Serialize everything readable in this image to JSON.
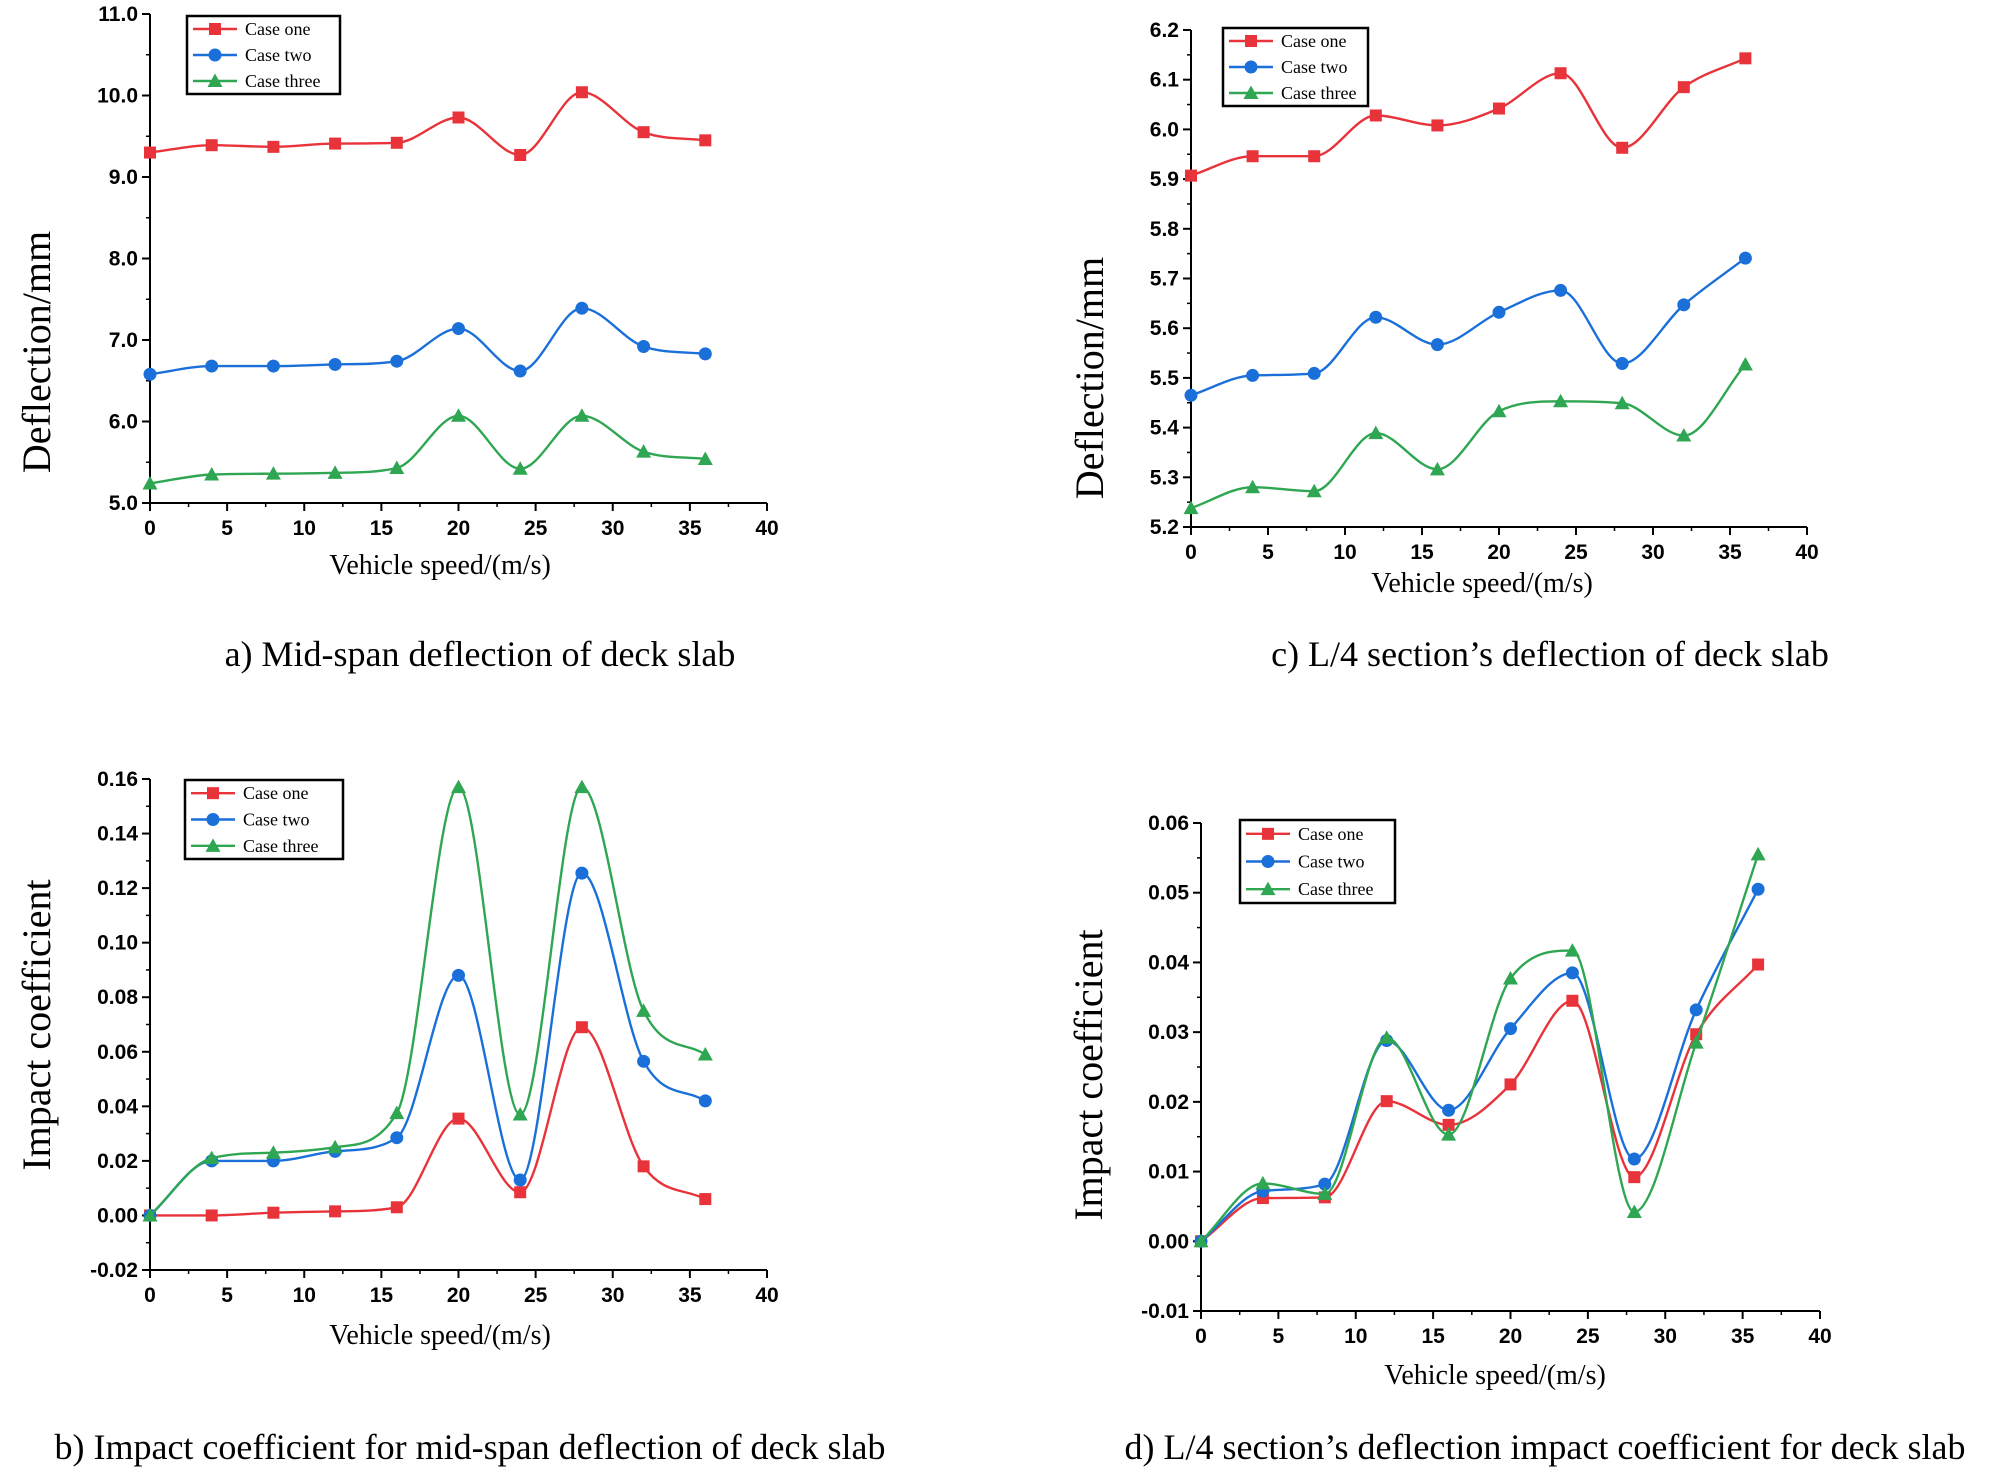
{
  "colors": {
    "case_one": "#e8333a",
    "case_two": "#1a6fd9",
    "case_three": "#2fa652"
  },
  "chart_data": [
    {
      "id": "a",
      "type": "line",
      "caption": "a) Mid-span deflection of deck slab",
      "ylabel": "Deflection/mm",
      "xlabel": "Vehicle speed/(m/s)",
      "xlim": [
        0,
        40
      ],
      "ylim": [
        5.0,
        11.0
      ],
      "xticks": [
        0,
        5,
        10,
        15,
        20,
        25,
        30,
        35,
        40
      ],
      "yticks": [
        5.0,
        6.0,
        7.0,
        8.0,
        9.0,
        10.0,
        11.0
      ],
      "xtick_labels": [
        "0",
        "5",
        "10",
        "15",
        "20",
        "25",
        "30",
        "35",
        "40"
      ],
      "ytick_labels": [
        "5.0",
        "6.0",
        "7.0",
        "8.0",
        "9.0",
        "10.0",
        "11.0"
      ],
      "x": [
        0,
        4,
        8,
        12,
        16,
        20,
        24,
        28,
        32,
        36
      ],
      "series": [
        {
          "name": "Case one",
          "marker": "square",
          "values": [
            9.3,
            9.39,
            9.37,
            9.41,
            9.42,
            9.73,
            9.27,
            10.04,
            9.55,
            9.45
          ]
        },
        {
          "name": "Case two",
          "marker": "circle",
          "values": [
            6.58,
            6.68,
            6.68,
            6.7,
            6.74,
            7.14,
            6.62,
            7.39,
            6.92,
            6.83
          ]
        },
        {
          "name": "Case three",
          "marker": "triangle",
          "values": [
            5.24,
            5.35,
            5.36,
            5.37,
            5.43,
            6.07,
            5.42,
            6.07,
            5.63,
            5.54
          ]
        }
      ]
    },
    {
      "id": "c",
      "type": "line",
      "caption": "c) L/4 section’s deflection of deck slab",
      "ylabel": "Deflection/mm",
      "xlabel": "Vehicle speed/(m/s)",
      "xlim": [
        0,
        40
      ],
      "ylim": [
        5.2,
        6.2
      ],
      "xticks": [
        0,
        5,
        10,
        15,
        20,
        25,
        30,
        35,
        40
      ],
      "yticks": [
        5.2,
        5.3,
        5.4,
        5.5,
        5.6,
        5.7,
        5.8,
        5.9,
        6.0,
        6.1,
        6.2
      ],
      "xtick_labels": [
        "0",
        "5",
        "10",
        "15",
        "20",
        "25",
        "30",
        "35",
        "40"
      ],
      "ytick_labels": [
        "5.2",
        "5.3",
        "5.4",
        "5.5",
        "5.6",
        "5.7",
        "5.8",
        "5.9",
        "6.0",
        "6.1",
        "6.2"
      ],
      "x": [
        0,
        4,
        8,
        12,
        16,
        20,
        24,
        28,
        32,
        36
      ],
      "series": [
        {
          "name": "Case one",
          "marker": "square",
          "values": [
            5.907,
            5.946,
            5.946,
            6.028,
            6.008,
            6.042,
            6.113,
            5.963,
            6.085,
            6.143
          ]
        },
        {
          "name": "Case two",
          "marker": "circle",
          "values": [
            5.465,
            5.505,
            5.509,
            5.622,
            5.567,
            5.632,
            5.676,
            5.529,
            5.647,
            5.741
          ]
        },
        {
          "name": "Case three",
          "marker": "triangle",
          "values": [
            5.238,
            5.28,
            5.272,
            5.389,
            5.316,
            5.433,
            5.453,
            5.449,
            5.384,
            5.527
          ]
        }
      ]
    },
    {
      "id": "b",
      "type": "line",
      "caption": "b) Impact coefficient for mid-span deflection of deck slab",
      "ylabel": "Impact coefficient",
      "xlabel": "Vehicle speed/(m/s)",
      "xlim": [
        0,
        40
      ],
      "ylim": [
        -0.02,
        0.16
      ],
      "xticks": [
        0,
        5,
        10,
        15,
        20,
        25,
        30,
        35,
        40
      ],
      "yticks": [
        -0.02,
        0.0,
        0.02,
        0.04,
        0.06,
        0.08,
        0.1,
        0.12,
        0.14,
        0.16
      ],
      "xtick_labels": [
        "0",
        "5",
        "10",
        "15",
        "20",
        "25",
        "30",
        "35",
        "40"
      ],
      "ytick_labels": [
        "-0.02",
        "0.00",
        "0.02",
        "0.04",
        "0.06",
        "0.08",
        "0.10",
        "0.12",
        "0.14",
        "0.16"
      ],
      "x": [
        0,
        4,
        8,
        12,
        16,
        20,
        24,
        28,
        32,
        36
      ],
      "series": [
        {
          "name": "Case one",
          "marker": "square",
          "values": [
            0.0,
            0.0,
            0.001,
            0.0015,
            0.003,
            0.0355,
            0.0085,
            0.069,
            0.018,
            0.006
          ]
        },
        {
          "name": "Case two",
          "marker": "circle",
          "values": [
            0.0,
            0.02,
            0.02,
            0.0235,
            0.0285,
            0.088,
            0.013,
            0.1255,
            0.0565,
            0.042
          ]
        },
        {
          "name": "Case three",
          "marker": "triangle",
          "values": [
            0.0,
            0.021,
            0.023,
            0.025,
            0.0375,
            0.157,
            0.037,
            0.157,
            0.075,
            0.059
          ]
        }
      ]
    },
    {
      "id": "d",
      "type": "line",
      "caption": "d) L/4 section’s deflection impact coefficient for deck slab",
      "ylabel": "Impact coefficient",
      "xlabel": "Vehicle speed/(m/s)",
      "xlim": [
        0,
        40
      ],
      "ylim": [
        -0.01,
        0.06
      ],
      "xticks": [
        0,
        5,
        10,
        15,
        20,
        25,
        30,
        35,
        40
      ],
      "yticks": [
        -0.01,
        0.0,
        0.01,
        0.02,
        0.03,
        0.04,
        0.05,
        0.06
      ],
      "xtick_labels": [
        "0",
        "5",
        "10",
        "15",
        "20",
        "25",
        "30",
        "35",
        "40"
      ],
      "ytick_labels": [
        "-0.01",
        "0.00",
        "0.01",
        "0.02",
        "0.03",
        "0.04",
        "0.05",
        "0.06"
      ],
      "x": [
        0,
        4,
        8,
        12,
        16,
        20,
        24,
        28,
        32,
        36
      ],
      "series": [
        {
          "name": "Case one",
          "marker": "square",
          "values": [
            0.0,
            0.0062,
            0.0063,
            0.0201,
            0.0167,
            0.0225,
            0.0345,
            0.0092,
            0.0297,
            0.0397
          ]
        },
        {
          "name": "Case two",
          "marker": "circle",
          "values": [
            0.0,
            0.0072,
            0.0082,
            0.0288,
            0.0188,
            0.0305,
            0.0385,
            0.0118,
            0.0332,
            0.0505
          ]
        },
        {
          "name": "Case three",
          "marker": "triangle",
          "values": [
            0.0,
            0.0083,
            0.0068,
            0.0292,
            0.0153,
            0.0377,
            0.0417,
            0.0042,
            0.0285,
            0.0555
          ]
        }
      ]
    }
  ]
}
